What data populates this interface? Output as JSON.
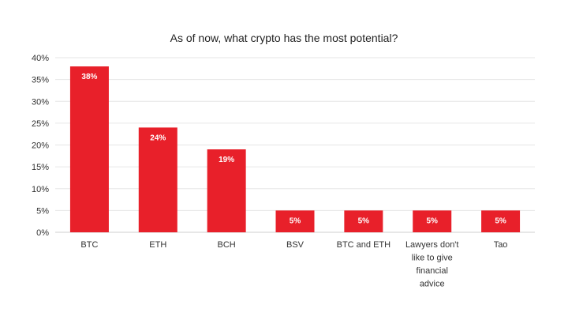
{
  "chart_data": {
    "type": "bar",
    "title": "As of now, what crypto has the most potential?",
    "categories": [
      "BTC",
      "ETH",
      "BCH",
      "BSV",
      "BTC and ETH",
      "Lawyers don't like to give financial advice",
      "Tao"
    ],
    "values": [
      38,
      24,
      19,
      5,
      5,
      5,
      5
    ],
    "data_labels": [
      "38%",
      "24%",
      "19%",
      "5%",
      "5%",
      "5%",
      "5%"
    ],
    "yticks": [
      "0%",
      "5%",
      "10%",
      "15%",
      "20%",
      "25%",
      "30%",
      "35%",
      "40%"
    ],
    "ylim": [
      0,
      40
    ],
    "grid": true,
    "legend": "none",
    "bar_color": "#e8202a"
  }
}
